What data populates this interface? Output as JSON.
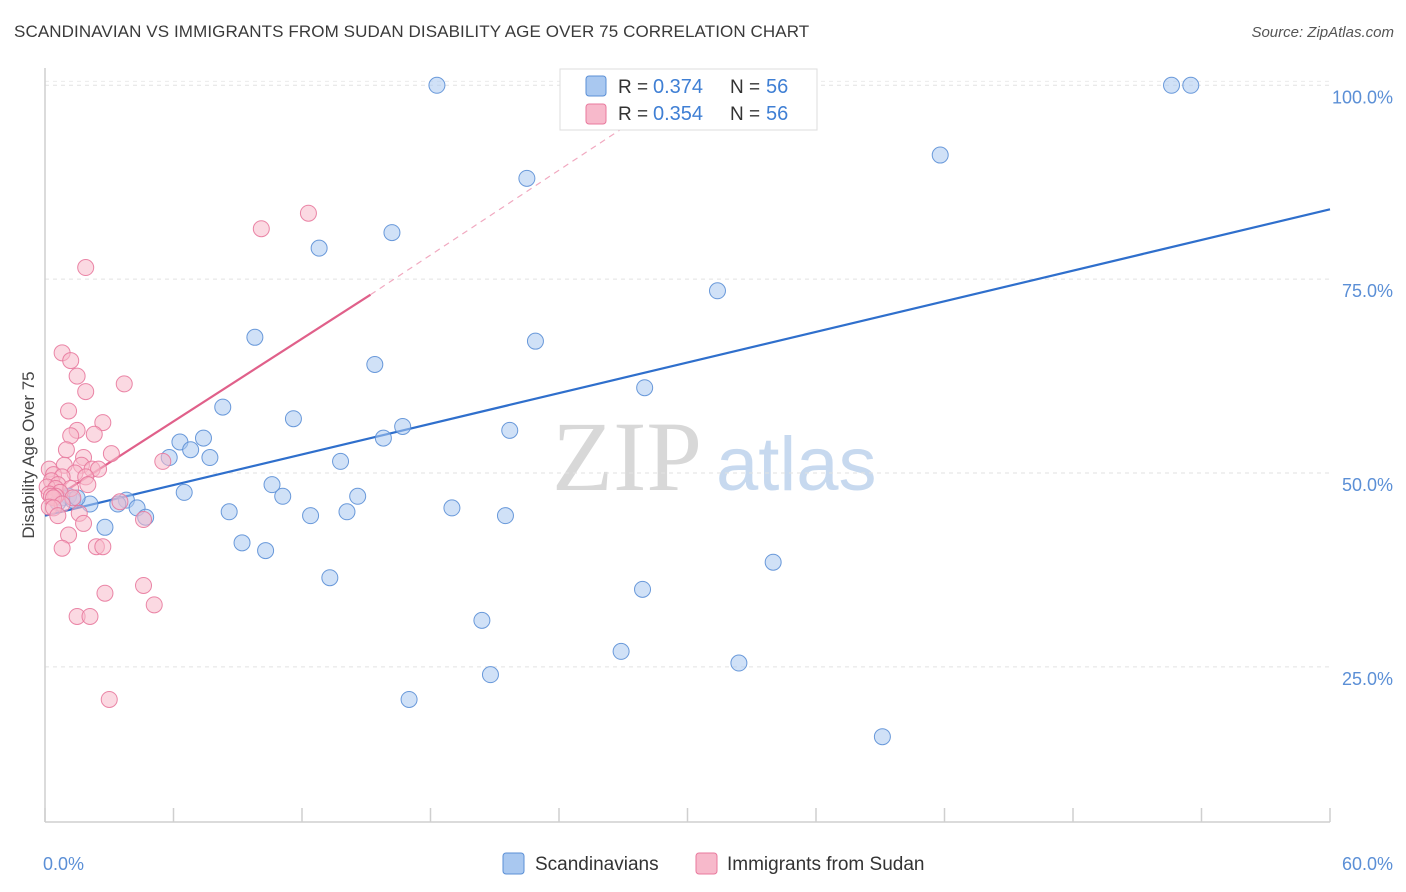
{
  "header": {
    "title": "SCANDINAVIAN VS IMMIGRANTS FROM SUDAN DISABILITY AGE OVER 75 CORRELATION CHART",
    "source": "Source: ZipAtlas.com"
  },
  "watermark": {
    "zip": "ZIP",
    "atlas": "atlas"
  },
  "stats": [
    {
      "r_label": "R =",
      "r": "0.374",
      "n_label": "N =",
      "n": "56",
      "color": "#a9c8f0"
    },
    {
      "r_label": "R =",
      "r": "0.354",
      "n_label": "N =",
      "n": "56",
      "color": "#f7b9cb"
    }
  ],
  "legend": [
    {
      "label": "Scandinavians",
      "color": "#a9c8f0"
    },
    {
      "label": "Immigrants from Sudan",
      "color": "#f7b9cb"
    }
  ],
  "chart_data": {
    "type": "scatter",
    "title": "SCANDINAVIAN VS IMMIGRANTS FROM SUDAN DISABILITY AGE OVER 75 CORRELATION CHART",
    "xlabel": "",
    "ylabel": "Disability Age Over 75",
    "xlim": [
      0,
      60
    ],
    "ylim": [
      5,
      103
    ],
    "x_tick_labels": [
      {
        "value": 0,
        "label": "0.0%"
      },
      {
        "value": 60,
        "label": "60.0%"
      }
    ],
    "y_tick_labels": [
      {
        "value": 25,
        "label": "25.0%"
      },
      {
        "value": 50,
        "label": "50.0%"
      },
      {
        "value": 75,
        "label": "75.0%"
      },
      {
        "value": 100,
        "label": "100.0%"
      }
    ],
    "grid": true,
    "legend_position": "bottom-center",
    "series": [
      {
        "name": "Scandinavians",
        "color": "#5b8fd6",
        "fill": "#a9c8f0",
        "points": [
          [
            18.3,
            100.0
          ],
          [
            25.6,
            100.0
          ],
          [
            31.4,
            100.0
          ],
          [
            52.6,
            100.0
          ],
          [
            53.5,
            100.0
          ],
          [
            41.8,
            91.0
          ],
          [
            22.5,
            88.0
          ],
          [
            16.2,
            81.0
          ],
          [
            12.8,
            79.0
          ],
          [
            31.4,
            73.5
          ],
          [
            9.8,
            67.5
          ],
          [
            22.9,
            67.0
          ],
          [
            15.4,
            64.0
          ],
          [
            28.0,
            61.0
          ],
          [
            8.3,
            58.5
          ],
          [
            11.6,
            57.0
          ],
          [
            16.7,
            56.0
          ],
          [
            21.7,
            55.5
          ],
          [
            15.8,
            54.5
          ],
          [
            7.4,
            54.5
          ],
          [
            6.3,
            54.0
          ],
          [
            6.8,
            53.0
          ],
          [
            5.8,
            52.0
          ],
          [
            7.7,
            52.0
          ],
          [
            13.8,
            51.5
          ],
          [
            10.6,
            48.5
          ],
          [
            1.1,
            47.0
          ],
          [
            0.8,
            46.8
          ],
          [
            6.5,
            47.5
          ],
          [
            11.1,
            47.0
          ],
          [
            14.6,
            47.0
          ],
          [
            1.3,
            46.5
          ],
          [
            3.8,
            46.5
          ],
          [
            2.1,
            46.0
          ],
          [
            3.4,
            46.0
          ],
          [
            4.3,
            45.5
          ],
          [
            0.6,
            46.2
          ],
          [
            19.0,
            45.5
          ],
          [
            8.6,
            45.0
          ],
          [
            14.1,
            45.0
          ],
          [
            12.4,
            44.5
          ],
          [
            21.5,
            44.5
          ],
          [
            4.7,
            44.3
          ],
          [
            2.8,
            43.0
          ],
          [
            9.2,
            41.0
          ],
          [
            34.0,
            38.5
          ],
          [
            10.3,
            40.0
          ],
          [
            13.3,
            36.5
          ],
          [
            27.9,
            35.0
          ],
          [
            20.4,
            31.0
          ],
          [
            26.9,
            27.0
          ],
          [
            32.4,
            25.5
          ],
          [
            20.8,
            24.0
          ],
          [
            17.0,
            20.8
          ],
          [
            39.1,
            16.0
          ],
          [
            1.5,
            46.8
          ]
        ]
      },
      {
        "name": "Immigrants from Sudan",
        "color": "#e8799d",
        "fill": "#f7b9cb",
        "points": [
          [
            12.3,
            83.5
          ],
          [
            10.1,
            81.5
          ],
          [
            1.9,
            76.5
          ],
          [
            0.8,
            65.5
          ],
          [
            1.2,
            64.5
          ],
          [
            1.5,
            62.5
          ],
          [
            3.7,
            61.5
          ],
          [
            1.9,
            60.5
          ],
          [
            1.1,
            58.0
          ],
          [
            2.7,
            56.5
          ],
          [
            1.5,
            55.5
          ],
          [
            2.3,
            55.0
          ],
          [
            1.2,
            54.8
          ],
          [
            1.0,
            53.0
          ],
          [
            3.1,
            52.5
          ],
          [
            1.8,
            52.0
          ],
          [
            5.5,
            51.5
          ],
          [
            0.9,
            51.0
          ],
          [
            1.7,
            51.0
          ],
          [
            2.2,
            50.5
          ],
          [
            2.5,
            50.5
          ],
          [
            0.2,
            50.5
          ],
          [
            1.4,
            50.0
          ],
          [
            0.4,
            49.8
          ],
          [
            0.8,
            49.5
          ],
          [
            1.9,
            49.5
          ],
          [
            0.3,
            49.0
          ],
          [
            0.6,
            48.5
          ],
          [
            2.0,
            48.5
          ],
          [
            0.1,
            48.2
          ],
          [
            0.5,
            48.0
          ],
          [
            1.2,
            48.0
          ],
          [
            0.7,
            47.5
          ],
          [
            0.2,
            47.3
          ],
          [
            0.5,
            47.0
          ],
          [
            0.3,
            47.0
          ],
          [
            0.4,
            46.8
          ],
          [
            1.3,
            46.8
          ],
          [
            0.8,
            46.0
          ],
          [
            0.2,
            45.6
          ],
          [
            3.5,
            46.3
          ],
          [
            0.4,
            45.5
          ],
          [
            1.6,
            44.8
          ],
          [
            0.6,
            44.5
          ],
          [
            4.6,
            44.0
          ],
          [
            1.8,
            43.5
          ],
          [
            1.1,
            42.0
          ],
          [
            2.4,
            40.5
          ],
          [
            2.7,
            40.5
          ],
          [
            0.8,
            40.3
          ],
          [
            4.6,
            35.5
          ],
          [
            2.8,
            34.5
          ],
          [
            5.1,
            33.0
          ],
          [
            1.5,
            31.5
          ],
          [
            2.1,
            31.5
          ],
          [
            3.0,
            20.8
          ]
        ]
      }
    ],
    "trendlines": [
      {
        "series": "Scandinavians",
        "x": [
          0,
          60
        ],
        "y": [
          44.5,
          84.0
        ],
        "color": "#2f6fcc"
      },
      {
        "series": "Immigrants from Sudan",
        "x": [
          0,
          15.2
        ],
        "y": [
          46.0,
          73.0
        ],
        "color": "#e0608a",
        "dashed_extension_to": [
          30.0,
          100.0
        ]
      }
    ]
  }
}
